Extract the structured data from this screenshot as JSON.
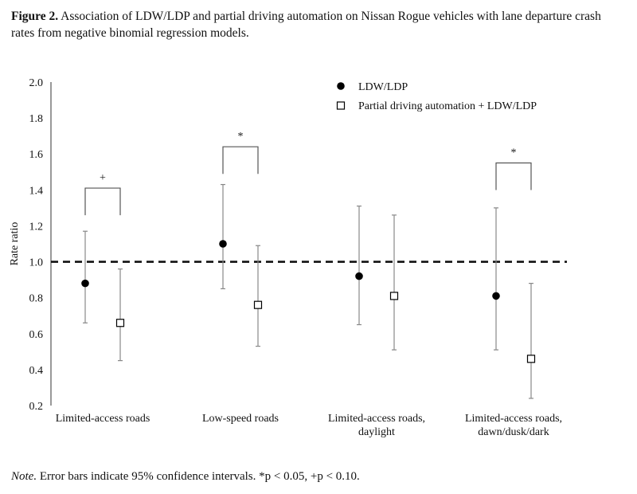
{
  "caption": {
    "lead": "Figure 2.",
    "text": "Association of LDW/LDP and partial driving automation on Nissan Rogue vehicles with lane departure crash rates from negative binomial regression models."
  },
  "note": {
    "italic": "Note.",
    "text": "Error bars indicate 95% confidence intervals. *p < 0.05, +p < 0.10."
  },
  "chart_data": {
    "type": "scatter",
    "ylabel": "Rate ratio",
    "ylim": [
      0.2,
      2.0
    ],
    "yticks": [
      "0.2",
      "0.4",
      "0.6",
      "0.8",
      "1.0",
      "1.2",
      "1.4",
      "1.6",
      "1.8",
      "2.0"
    ],
    "reference_line": 1.0,
    "categories": [
      [
        "Limited-access roads"
      ],
      [
        "Low-speed roads"
      ],
      [
        "Limited-access roads,",
        "daylight"
      ],
      [
        "Limited-access roads,",
        "dawn/dusk/dark"
      ]
    ],
    "series": [
      {
        "name": "LDW/LDP",
        "marker": "filled-circle",
        "values": [
          0.88,
          1.1,
          0.92,
          0.81
        ],
        "ci_low": [
          0.66,
          0.85,
          0.65,
          0.51
        ],
        "ci_high": [
          1.17,
          1.43,
          1.31,
          1.3
        ]
      },
      {
        "name": "Partial driving automation + LDW/LDP",
        "marker": "open-square",
        "values": [
          0.66,
          0.76,
          0.81,
          0.46
        ],
        "ci_low": [
          0.45,
          0.53,
          0.51,
          0.24
        ],
        "ci_high": [
          0.96,
          1.09,
          1.26,
          0.88
        ]
      }
    ],
    "significance": [
      {
        "category_index": 0,
        "label": "+",
        "y": 1.41
      },
      {
        "category_index": 1,
        "label": "*",
        "y": 1.64
      },
      {
        "category_index": 3,
        "label": "*",
        "y": 1.55
      }
    ],
    "legend_position": "top-center",
    "grid": false
  }
}
